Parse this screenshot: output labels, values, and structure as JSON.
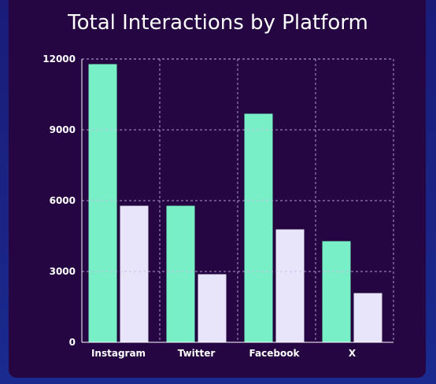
{
  "chart_data": {
    "type": "bar",
    "title": "Total Interactions by Platform",
    "categories": [
      "Instagram",
      "Twitter",
      "Facebook",
      "X"
    ],
    "series": [
      {
        "values": [
          11800,
          5800,
          9700,
          4300
        ],
        "color": "#79efc8"
      },
      {
        "values": [
          5800,
          2900,
          4800,
          2100
        ],
        "color": "#e8e4fa"
      }
    ],
    "yticks": [
      "0",
      "3000",
      "6000",
      "9000",
      "12000"
    ],
    "ylim": [
      0,
      12000
    ],
    "grid": true,
    "xlabel": "",
    "ylabel": ""
  }
}
